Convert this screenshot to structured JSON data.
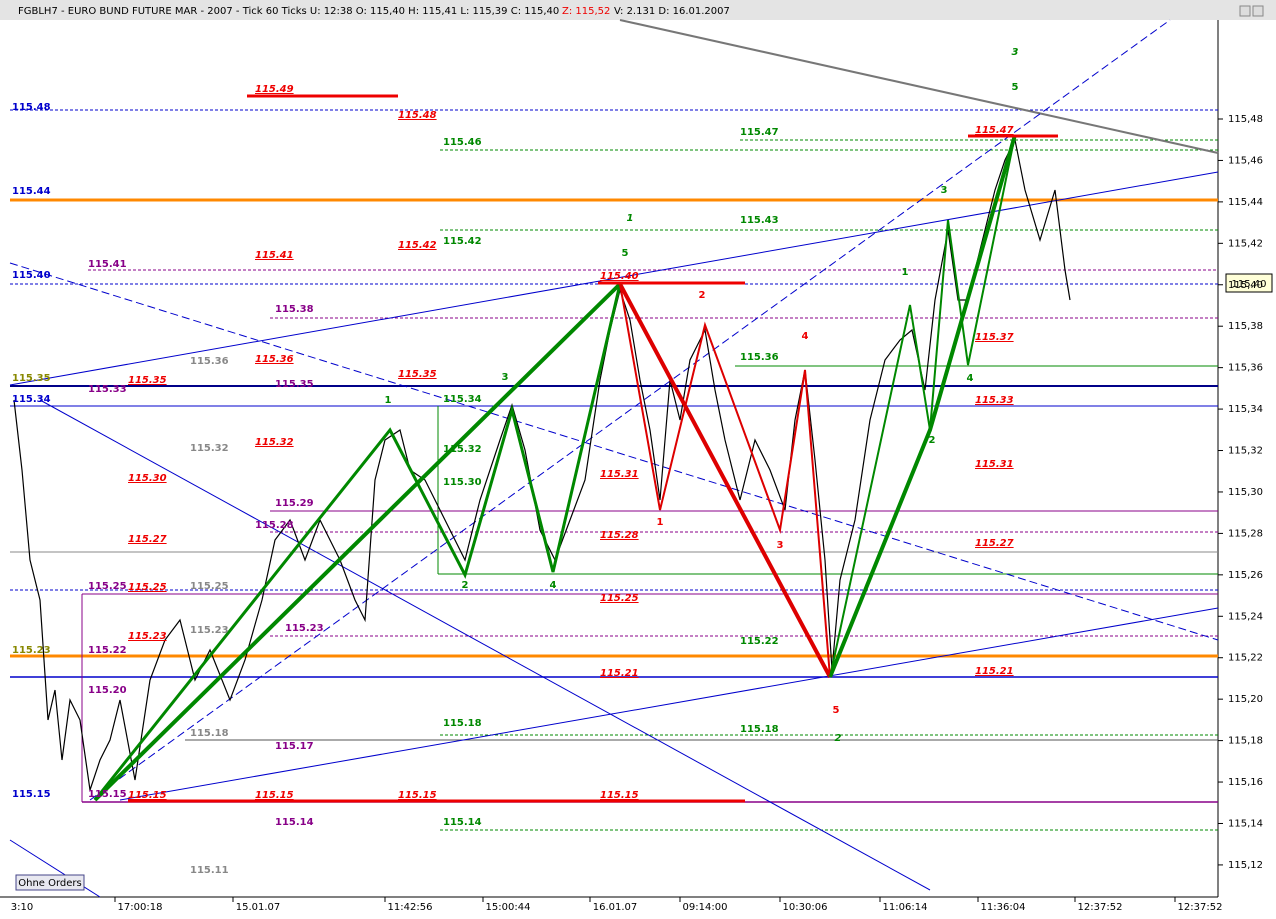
{
  "header": {
    "title": "FGBLH7 - EURO BUND FUTURE  MAR - 2007 - Tick 60 Ticks  U: 12:38  O: 115,40  H: 115,41  L: 115,39  C: 115,40",
    "z": "Z: 115,52",
    "rest": "V: 2.131  D: 16.01.2007"
  },
  "price_axis": {
    "ticks": [
      "115,48",
      "115,46",
      "115,44",
      "115,42",
      "115,40",
      "115,38",
      "115,36",
      "115,34",
      "115,32",
      "115,30",
      "115,28",
      "115,26",
      "115,24",
      "115,22",
      "115,20",
      "115,18",
      "115,16",
      "115,14",
      "115,12"
    ],
    "current": "115,40"
  },
  "time_axis": {
    "labels": [
      "3:10",
      "17:00:18",
      "15.01.07",
      "11:42:56",
      "15:00:44",
      "16.01.07",
      "09:14:00",
      "10:30:06",
      "11:06:14",
      "11:36:04",
      "12:37:52",
      "12:37:52"
    ]
  },
  "levels": {
    "red": [
      "115.49",
      "115.48",
      "115.42",
      "115.41",
      "115.36",
      "115.35",
      "115.35",
      "115.32",
      "115.30",
      "115.27",
      "115.25",
      "115.25",
      "115.23",
      "115.21",
      "115.21",
      "115.15",
      "115.15",
      "115.15",
      "115.15",
      "115.40",
      "115.47",
      "115.37",
      "115.33",
      "115.31",
      "115.27",
      "115.31",
      "115.28"
    ],
    "green": [
      "115.46",
      "115.47",
      "115.43",
      "115.42",
      "115.36",
      "115.34",
      "115.32",
      "115.30",
      "115.18",
      "115.18",
      "115.14",
      "115.22"
    ],
    "purple": [
      "115.41",
      "115.38",
      "115.35",
      "115.33",
      "115.29",
      "115.28",
      "115.25",
      "115.23",
      "115.22",
      "115.20",
      "115.17",
      "115.14",
      "115.15"
    ],
    "gray": [
      "115.36",
      "115.32",
      "115.25",
      "115.23",
      "115.18",
      "115.11"
    ],
    "blue": [
      "115.48",
      "115.44",
      "115.40",
      "115.34",
      "115.15"
    ],
    "olive": [
      "115.35",
      "115.23"
    ]
  },
  "waves": {
    "major": [
      "1",
      "2",
      "3"
    ],
    "green": [
      "5",
      "1",
      "3",
      "2",
      "4",
      "1",
      "2",
      "3",
      "4",
      "5"
    ],
    "red": [
      "1",
      "2",
      "3",
      "4",
      "5"
    ]
  },
  "button": "Ohne Orders"
}
